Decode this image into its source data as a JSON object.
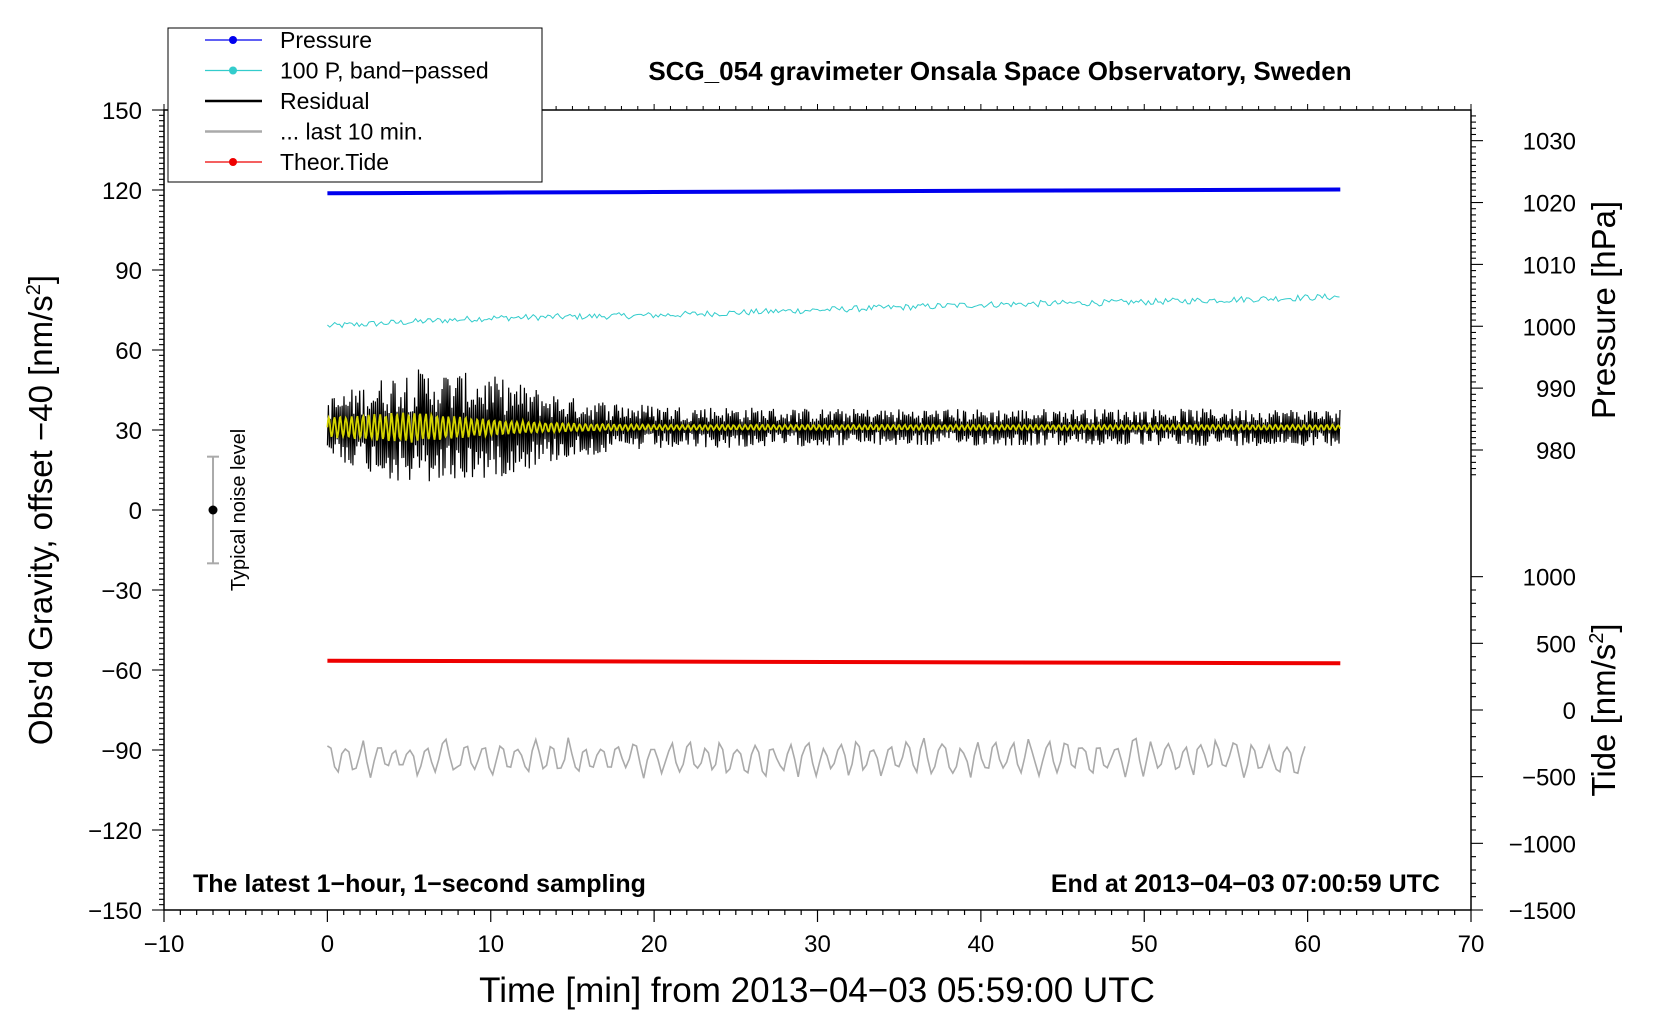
{
  "chart_data": {
    "type": "line",
    "title": "SCG_054 gravimeter Onsala Space Observatory, Sweden",
    "xlabel": "Time [min] from 2013−04−03 05:59:00 UTC",
    "ylabel_left": "Obs'd Gravity, offset −40 [nm/s",
    "ylabel_left_sup": "2",
    "ylabel_left_end": "]",
    "ylabel_right_pressure": "Pressure [hPa]",
    "ylabel_right_tide": "Tide [nm/s",
    "ylabel_right_tide_sup": "2",
    "ylabel_right_tide_end": "]",
    "xlim": [
      -10,
      70
    ],
    "ylim": [
      -150,
      150
    ],
    "x_ticks": [
      {
        "v": -10,
        "label": "−10"
      },
      {
        "v": 0,
        "label": "0"
      },
      {
        "v": 10,
        "label": "10"
      },
      {
        "v": 20,
        "label": "20"
      },
      {
        "v": 30,
        "label": "30"
      },
      {
        "v": 40,
        "label": "40"
      },
      {
        "v": 50,
        "label": "50"
      },
      {
        "v": 60,
        "label": "60"
      },
      {
        "v": 70,
        "label": "70"
      }
    ],
    "y_ticks": [
      {
        "v": 150,
        "label": "150"
      },
      {
        "v": 120,
        "label": "120"
      },
      {
        "v": 90,
        "label": "90"
      },
      {
        "v": 60,
        "label": "60"
      },
      {
        "v": 30,
        "label": "30"
      },
      {
        "v": 0,
        "label": "0"
      },
      {
        "v": -30,
        "label": "−30"
      },
      {
        "v": -60,
        "label": "−60"
      },
      {
        "v": -90,
        "label": "−90"
      },
      {
        "v": -120,
        "label": "−120"
      },
      {
        "v": -150,
        "label": "−150"
      }
    ],
    "pressure_axis": {
      "ticks": [
        {
          "v": 1030,
          "label": "1030"
        },
        {
          "v": 1020,
          "label": "1020"
        },
        {
          "v": 1010,
          "label": "1010"
        },
        {
          "v": 1000,
          "label": "1000"
        },
        {
          "v": 990,
          "label": "990"
        },
        {
          "v": 980,
          "label": "980"
        }
      ],
      "map": {
        "p1": 1030,
        "y1": 138.5,
        "p2": 980,
        "y2": 22.5
      }
    },
    "tide_axis": {
      "ticks": [
        {
          "v": 1000,
          "label": "1000"
        },
        {
          "v": 500,
          "label": "500"
        },
        {
          "v": 0,
          "label": "0"
        },
        {
          "v": -500,
          "label": "−500"
        },
        {
          "v": -1000,
          "label": "−1000"
        },
        {
          "v": -1500,
          "label": "−1500"
        }
      ],
      "map": {
        "t1": 1000,
        "y1": -25,
        "t2": -1500,
        "y2": -150
      }
    },
    "legend": {
      "position": "top-left",
      "entries": [
        {
          "label": "Pressure",
          "color": "#0000ee",
          "marker": true
        },
        {
          "label": "100 P, band−passed",
          "color": "#33cccc",
          "marker": true
        },
        {
          "label": "Residual",
          "color": "#000000",
          "marker": false
        },
        {
          "label": "... last 10 min.",
          "color": "#aaaaaa",
          "marker": false
        },
        {
          "label": "Theor.Tide",
          "color": "#ee0000",
          "marker": true
        }
      ]
    },
    "series": [
      {
        "name": "Pressure",
        "color": "#0000ee",
        "x": [
          0,
          10,
          20,
          30,
          40,
          50,
          62
        ],
        "y_hpa": [
          1021.5,
          1021.6,
          1021.7,
          1021.8,
          1021.9,
          1022.0,
          1022.1
        ]
      },
      {
        "name": "100 P, band−passed",
        "color": "#33cccc",
        "x": [
          0,
          10,
          20,
          30,
          40,
          50,
          62
        ],
        "y": [
          69,
          72,
          73,
          75,
          77,
          78,
          80
        ],
        "noise_amplitude": 1.2
      },
      {
        "name": "Residual",
        "color": "#000000",
        "x": [
          0,
          5,
          10,
          15,
          20,
          30,
          40,
          50,
          62
        ],
        "center": 31,
        "envelope": [
          8,
          16,
          14,
          8,
          6,
          5,
          5,
          5,
          5
        ]
      },
      {
        "name": "Residual, low-passed",
        "color": "#d4d400",
        "x": [
          0,
          5,
          10,
          15,
          20,
          30,
          62
        ],
        "center": 31,
        "envelope": [
          4,
          6,
          3,
          1.5,
          1,
          1,
          1
        ]
      },
      {
        "name": "... last 10 min.",
        "color": "#aaaaaa",
        "x_range": [
          0,
          60
        ],
        "center": -93,
        "amplitude": 6
      },
      {
        "name": "Theor.Tide",
        "color": "#ee0000",
        "x": [
          0,
          62
        ],
        "y": [
          -56.5,
          -57.5
        ]
      }
    ],
    "noise_bar": {
      "label": "Typical noise level",
      "x": -7,
      "center": 0,
      "half_range": 20
    },
    "annotations": {
      "bottom_left": "The latest 1−hour, 1−second sampling",
      "bottom_right": "End at 2013−04−03 07:00:59 UTC"
    }
  }
}
